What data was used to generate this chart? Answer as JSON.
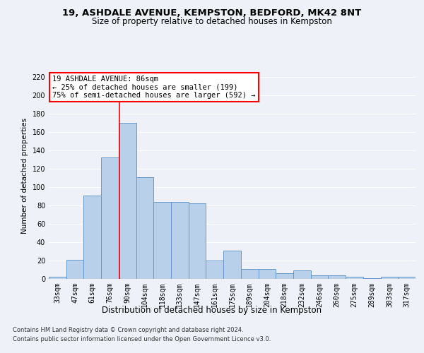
{
  "title1": "19, ASHDALE AVENUE, KEMPSTON, BEDFORD, MK42 8NT",
  "title2": "Size of property relative to detached houses in Kempston",
  "xlabel": "Distribution of detached houses by size in Kempston",
  "ylabel": "Number of detached properties",
  "categories": [
    "33sqm",
    "47sqm",
    "61sqm",
    "76sqm",
    "90sqm",
    "104sqm",
    "118sqm",
    "133sqm",
    "147sqm",
    "161sqm",
    "175sqm",
    "189sqm",
    "204sqm",
    "218sqm",
    "232sqm",
    "246sqm",
    "260sqm",
    "275sqm",
    "289sqm",
    "303sqm",
    "317sqm"
  ],
  "values": [
    2,
    21,
    91,
    132,
    170,
    111,
    84,
    84,
    82,
    20,
    31,
    11,
    11,
    6,
    9,
    4,
    4,
    2,
    1,
    2,
    2
  ],
  "bar_color": "#b8d0ea",
  "bar_edge_color": "#6699cc",
  "annotation_text_line1": "19 ASHDALE AVENUE: 86sqm",
  "annotation_text_line2": "← 25% of detached houses are smaller (199)",
  "annotation_text_line3": "75% of semi-detached houses are larger (592) →",
  "annotation_box_color": "white",
  "annotation_box_edge_color": "red",
  "vline_color": "red",
  "vline_x_index": 3.55,
  "ylim": [
    0,
    225
  ],
  "yticks": [
    0,
    20,
    40,
    60,
    80,
    100,
    120,
    140,
    160,
    180,
    200,
    220
  ],
  "footer1": "Contains HM Land Registry data © Crown copyright and database right 2024.",
  "footer2": "Contains public sector information licensed under the Open Government Licence v3.0.",
  "background_color": "#eef2f8",
  "grid_color": "#ffffff",
  "title1_fontsize": 9.5,
  "title2_fontsize": 8.5,
  "xlabel_fontsize": 8.5,
  "ylabel_fontsize": 7.5,
  "tick_fontsize": 7,
  "annotation_fontsize": 7.5,
  "footer_fontsize": 6
}
